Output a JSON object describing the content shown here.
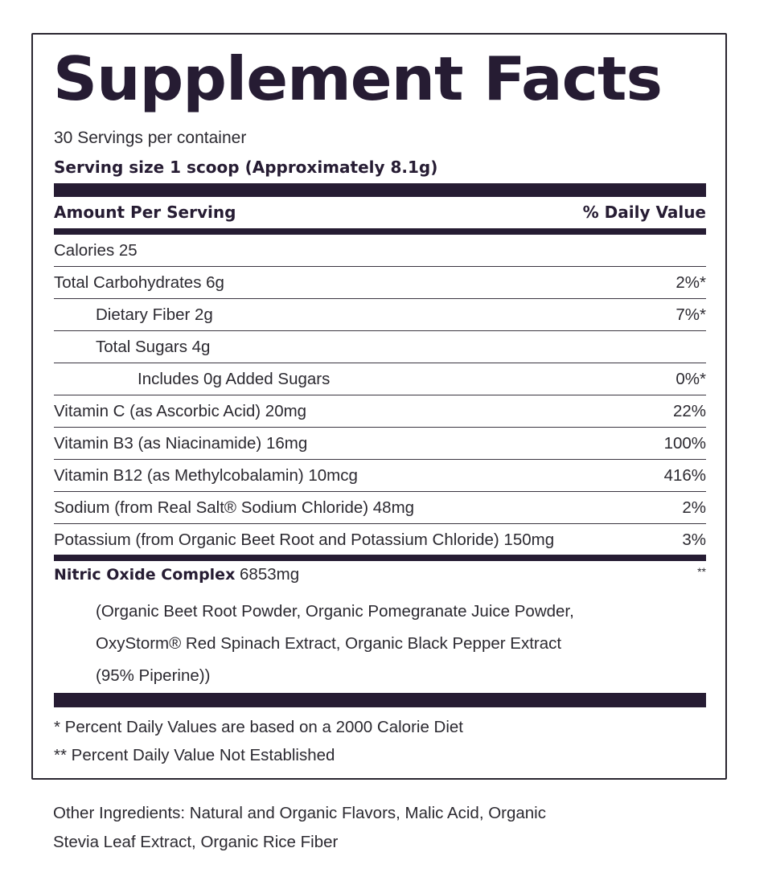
{
  "title": "Supplement Facts",
  "servings_per_container": "30 Servings per container",
  "serving_size": "Serving size 1 scoop (Approximately 8.1g)",
  "header": {
    "amount": "Amount Per Serving",
    "dv": "% Daily Value"
  },
  "rows": [
    {
      "name": "Calories 25",
      "dv": "",
      "indent": 0
    },
    {
      "name": "Total Carbohydrates 6g",
      "dv": "2%*",
      "indent": 0
    },
    {
      "name": "Dietary Fiber 2g",
      "dv": "7%*",
      "indent": 1
    },
    {
      "name": "Total Sugars 4g",
      "dv": "",
      "indent": 1
    },
    {
      "name": "Includes 0g Added Sugars",
      "dv": "0%*",
      "indent": 2
    },
    {
      "name": "Vitamin C (as Ascorbic Acid) 20mg",
      "dv": "22%",
      "indent": 0
    },
    {
      "name": "Vitamin B3 (as Niacinamide) 16mg",
      "dv": "100%",
      "indent": 0
    },
    {
      "name": "Vitamin B12 (as Methylcobalamin) 10mcg",
      "dv": "416%",
      "indent": 0
    },
    {
      "name": "Sodium (from Real Salt® Sodium Chloride) 48mg",
      "dv": "2%",
      "indent": 0
    },
    {
      "name": "Potassium (from Organic Beet Root and Potassium Chloride) 150mg",
      "dv": "3%",
      "indent": 0
    }
  ],
  "complex": {
    "name": "Nitric Oxide Complex",
    "amount": "6853mg",
    "dv": "**",
    "ingredients": [
      "(Organic Beet Root Powder, Organic Pomegranate Juice Powder,",
      "OxyStorm® Red Spinach Extract, Organic Black Pepper Extract",
      "(95% Piperine))"
    ]
  },
  "footnotes": [
    "* Percent Daily Values are based on a 2000 Calorie Diet",
    "** Percent Daily Value Not Established"
  ],
  "other_ingredients": [
    "Other Ingredients: Natural and Organic Flavors, Malic Acid, Organic",
    "Stevia Leaf Extract, Organic Rice Fiber"
  ],
  "colors": {
    "label_dark": "#261c33",
    "text": "#2b2930"
  }
}
